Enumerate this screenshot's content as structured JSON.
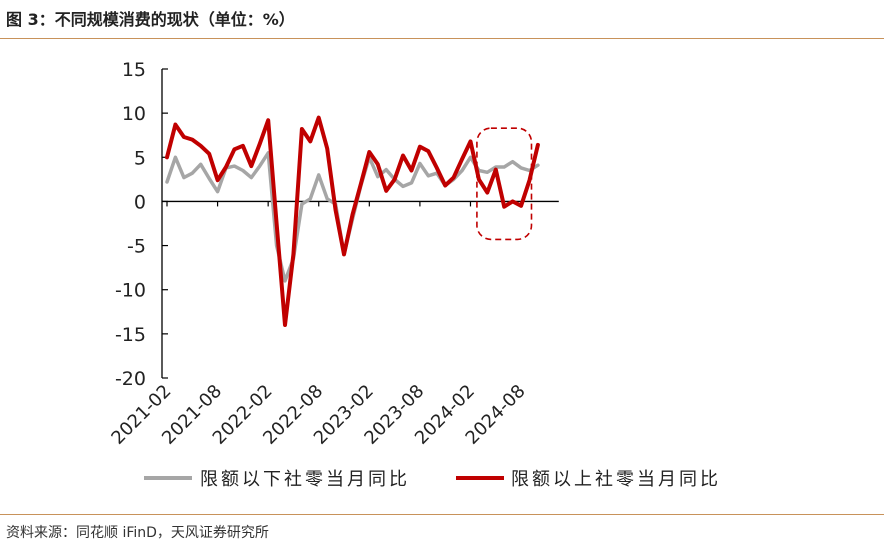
{
  "header": {
    "title": "图 3：不同规模消费的现状（单位：%）"
  },
  "footer": {
    "source": "资料来源：同花顺 iFinD，天风证券研究所"
  },
  "chart_data": {
    "type": "line",
    "title": "图 3：不同规模消费的现状（单位：%）",
    "xlabel": "",
    "ylabel": "",
    "ylim": [
      -20,
      15
    ],
    "yticks": [
      15,
      10,
      5,
      0,
      -5,
      -10,
      -15,
      -20
    ],
    "ytick_labels": [
      "15",
      "10",
      "5",
      "0",
      "-5",
      "-10",
      "-15",
      "-20"
    ],
    "x": [
      "2021-02",
      "2021-03",
      "2021-04",
      "2021-05",
      "2021-06",
      "2021-07",
      "2021-08",
      "2021-09",
      "2021-10",
      "2021-11",
      "2021-12",
      "2022-01",
      "2022-02",
      "2022-03",
      "2022-04",
      "2022-05",
      "2022-06",
      "2022-07",
      "2022-08",
      "2022-09",
      "2022-10",
      "2022-11",
      "2022-12",
      "2023-01",
      "2023-02",
      "2023-03",
      "2023-04",
      "2023-05",
      "2023-06",
      "2023-07",
      "2023-08",
      "2023-09",
      "2023-10",
      "2023-11",
      "2023-12",
      "2024-01",
      "2024-02",
      "2024-03",
      "2024-04",
      "2024-05",
      "2024-06",
      "2024-07",
      "2024-08",
      "2024-09",
      "2024-10",
      "2024-11",
      "2024-12"
    ],
    "xtick_labels": [
      "2021-02",
      "2021-08",
      "2022-02",
      "2022-08",
      "2023-02",
      "2023-08",
      "2024-02",
      "2024-08"
    ],
    "legend_position": "bottom",
    "grid": false,
    "highlight_box": {
      "from": "2024-03",
      "to": "2024-09",
      "y_range": [
        -4.3,
        8.3
      ]
    },
    "series": [
      {
        "name": "限额以下社零当月同比",
        "color": "#a6a6a6",
        "values": [
          2.2,
          5.0,
          2.7,
          3.2,
          4.2,
          2.6,
          1.1,
          3.8,
          4.0,
          3.5,
          2.7,
          4.0,
          5.5,
          -5.0,
          -9.0,
          -6.5,
          -0.3,
          0.3,
          3.0,
          0.3,
          -0.3,
          -6.0,
          -2.0,
          1.8,
          5.0,
          2.8,
          3.6,
          2.5,
          1.7,
          2.1,
          4.3,
          2.9,
          3.2,
          1.8,
          2.5,
          3.5,
          5.0,
          3.5,
          3.3,
          3.9,
          3.9,
          4.5,
          3.8,
          3.5,
          4.1,
          null,
          null
        ]
      },
      {
        "name": "限额以上社零当月同比",
        "color": "#c00000",
        "values": [
          5.0,
          8.7,
          7.3,
          7.0,
          6.3,
          5.4,
          2.4,
          3.9,
          5.9,
          6.3,
          4.0,
          6.5,
          9.2,
          -2.5,
          -14.0,
          -6.0,
          8.2,
          6.8,
          9.5,
          6.0,
          -1.0,
          -6.0,
          -1.5,
          2.0,
          5.6,
          4.2,
          1.2,
          2.5,
          5.2,
          3.5,
          6.2,
          5.7,
          3.8,
          1.8,
          2.7,
          4.8,
          6.8,
          2.5,
          1.0,
          3.6,
          -0.6,
          0.0,
          -0.5,
          2.4,
          6.4,
          null,
          null
        ]
      }
    ]
  }
}
